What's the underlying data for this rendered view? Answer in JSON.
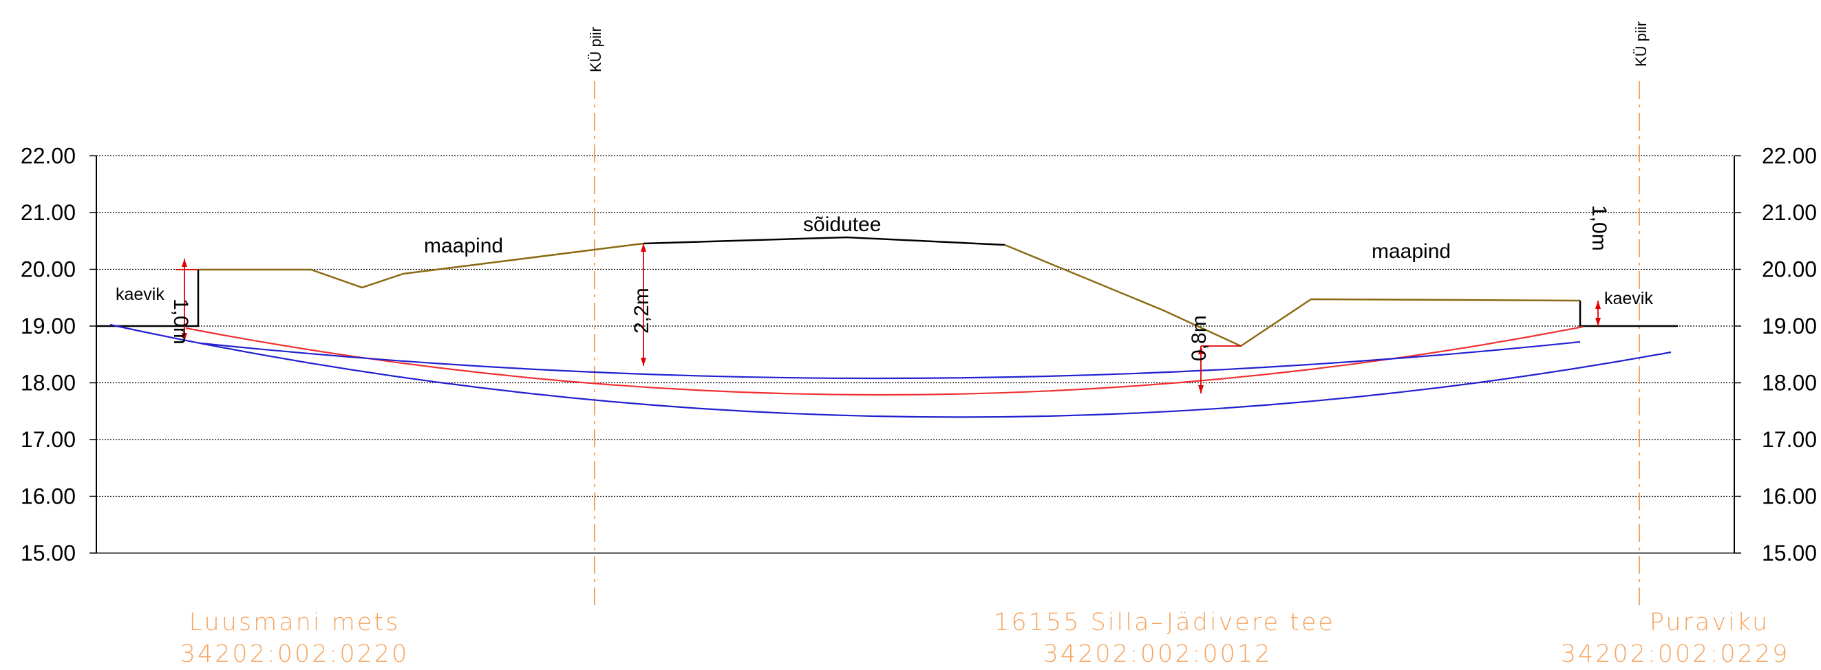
{
  "chart_data": {
    "type": "cross-section",
    "y_axis": {
      "min": 15.0,
      "max": 22.0,
      "ticks": [
        "15.00",
        "16.00",
        "17.00",
        "18.00",
        "19.00",
        "20.00",
        "21.00",
        "22.00"
      ]
    },
    "labels": {
      "boundary_left": "KÜ piir",
      "boundary_right": "KÜ piir",
      "ground_left": "maapind",
      "ground_right": "maapind",
      "road": "sõidutee",
      "trench_left": "kaevik",
      "trench_right": "kaevik",
      "dim_trench_left": "1,0m",
      "dim_trench_right": "1,0m",
      "dim_road": "2,2m",
      "dim_ditch": "0,8m"
    },
    "parcels": [
      {
        "name": "Luusmani mets",
        "code": "34202:002:0220"
      },
      {
        "name": "16155 Silla–Jädivere tee",
        "code": "34202:002:0012"
      },
      {
        "name": "Puraviku",
        "code": "34202:002:0229"
      }
    ],
    "colors": {
      "grid": "#000000",
      "terrain": "#8b6914",
      "road": "#000000",
      "pipe_outer": "#2020d0",
      "pipe_axis": "#f03030",
      "boundary": "#f5a55f",
      "parcel_text": "#f5a55f",
      "dimension": "#e00000"
    }
  }
}
